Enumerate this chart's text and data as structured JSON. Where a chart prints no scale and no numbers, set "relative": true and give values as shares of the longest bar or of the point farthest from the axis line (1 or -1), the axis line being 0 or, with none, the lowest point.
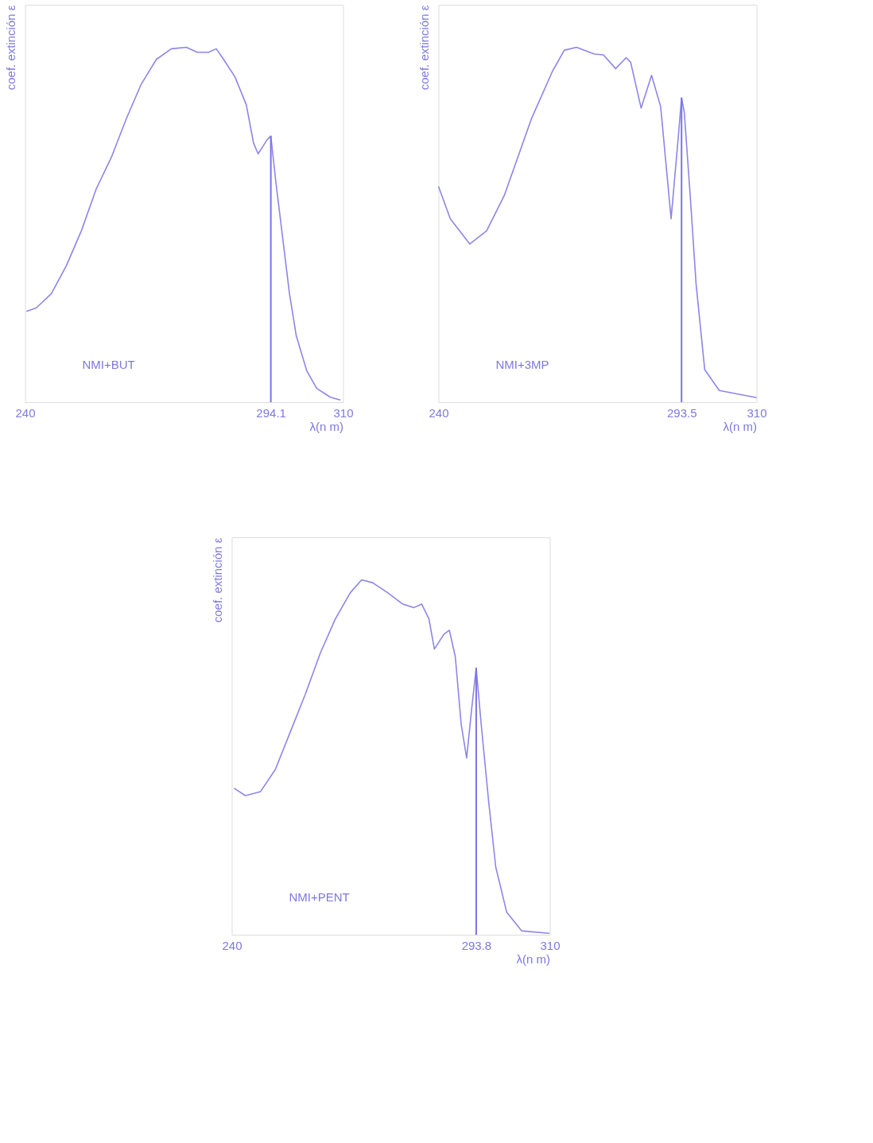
{
  "chart_data": [
    {
      "type": "line",
      "relative": true,
      "xlabel": "λ(n m)",
      "ylabel": "coef. extinción ε",
      "xlim": [
        240,
        310
      ],
      "xticks": [
        240,
        294.1,
        310
      ],
      "grid": false,
      "annotations": [
        "NMI+BUT"
      ],
      "ref_lines": [
        {
          "axis": "x",
          "value": 294.1,
          "color": "#7b74e6"
        }
      ],
      "series": [
        {
          "color": "#8c86e8",
          "x": [
            240.3,
            242.5,
            245.8,
            249.1,
            252.4,
            255.7,
            259.0,
            262.3,
            265.6,
            268.9,
            272.2,
            275.5,
            277.9,
            280.4,
            282.1,
            283.7,
            286.2,
            288.7,
            290.3,
            291.3,
            292.3,
            293.3,
            294.1,
            295.2,
            296.7,
            298.2,
            299.7,
            302.0,
            304.2,
            307.2,
            309.4
          ],
          "values": [
            0.256,
            0.266,
            0.306,
            0.385,
            0.483,
            0.602,
            0.69,
            0.799,
            0.897,
            0.966,
            0.996,
            1.0,
            0.986,
            0.986,
            0.996,
            0.966,
            0.917,
            0.838,
            0.73,
            0.7,
            0.72,
            0.74,
            0.75,
            0.621,
            0.464,
            0.306,
            0.187,
            0.089,
            0.039,
            0.014,
            0.006
          ]
        }
      ]
    },
    {
      "type": "line",
      "relative": true,
      "xlabel": "λ(n m)",
      "ylabel": "coef. extinción ε",
      "xlim": [
        240,
        310
      ],
      "xticks": [
        240,
        293.5,
        310
      ],
      "grid": false,
      "annotations": [
        "NMI+3MP"
      ],
      "ref_lines": [
        {
          "axis": "x",
          "value": 293.5,
          "color": "#7b74e6"
        }
      ],
      "series": [
        {
          "color": "#8c86e8",
          "x": [
            240.0,
            242.6,
            246.9,
            250.6,
            254.5,
            260.5,
            265.1,
            267.7,
            270.4,
            274.3,
            276.3,
            279.0,
            281.3,
            282.3,
            284.6,
            286.9,
            288.9,
            291.2,
            292.8,
            293.5,
            294.1,
            295.4,
            296.7,
            298.6,
            301.8,
            310.0
          ],
          "values": [
            0.608,
            0.517,
            0.446,
            0.483,
            0.583,
            0.8,
            0.933,
            0.992,
            1.0,
            0.981,
            0.979,
            0.94,
            0.971,
            0.958,
            0.829,
            0.921,
            0.833,
            0.517,
            0.75,
            0.858,
            0.817,
            0.583,
            0.333,
            0.092,
            0.033,
            0.013
          ]
        }
      ]
    },
    {
      "type": "line",
      "relative": true,
      "xlabel": "λ(n m)",
      "ylabel": "coef. extinción ε",
      "xlim": [
        240,
        310
      ],
      "xticks": [
        240,
        293.8,
        310
      ],
      "grid": false,
      "annotations": [
        "NMI+PENT"
      ],
      "ref_lines": [
        {
          "axis": "x",
          "value": 293.8,
          "color": "#7b74e6"
        }
      ],
      "series": [
        {
          "color": "#8c86e8",
          "x": [
            240.5,
            243.0,
            246.3,
            249.6,
            252.9,
            256.2,
            259.5,
            262.8,
            266.1,
            268.6,
            271.0,
            274.3,
            277.6,
            280.1,
            281.8,
            283.4,
            284.6,
            286.7,
            287.9,
            289.2,
            290.5,
            291.7,
            292.8,
            293.8,
            294.9,
            296.5,
            298.1,
            300.5,
            303.8,
            309.9
          ],
          "values": [
            0.413,
            0.392,
            0.403,
            0.466,
            0.572,
            0.678,
            0.794,
            0.89,
            0.964,
            1.0,
            0.992,
            0.964,
            0.932,
            0.922,
            0.932,
            0.89,
            0.805,
            0.847,
            0.858,
            0.784,
            0.593,
            0.498,
            0.636,
            0.752,
            0.593,
            0.381,
            0.191,
            0.064,
            0.011,
            0.004
          ]
        }
      ]
    }
  ]
}
